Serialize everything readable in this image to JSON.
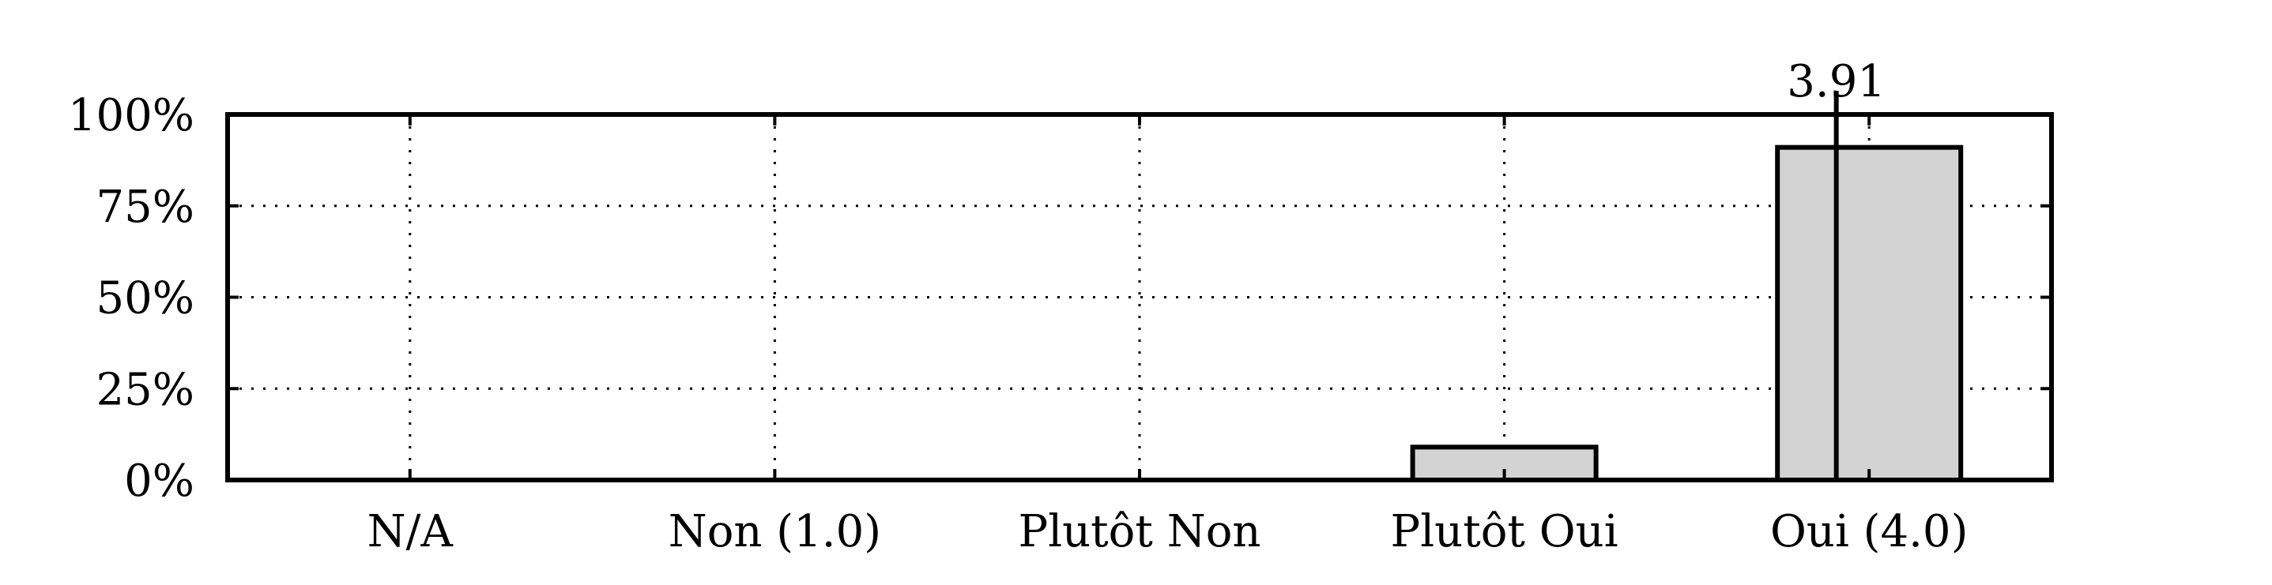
{
  "chart_data": {
    "type": "bar",
    "title": "",
    "xlabel": "",
    "ylabel": "",
    "categories": [
      "N/A",
      "Non (1.0)",
      "Plutôt Non",
      "Plutôt Oui",
      "Oui (4.0)"
    ],
    "values": [
      0,
      0,
      0,
      9,
      91
    ],
    "value_unit": "%",
    "ylim": [
      0,
      100
    ],
    "yticks": [
      0,
      25,
      50,
      75,
      100
    ],
    "ytick_labels": [
      "0%",
      "25%",
      "50%",
      "75%",
      "100%"
    ],
    "grid": true,
    "legend": "none",
    "bar_color": "#d3d3d3",
    "bar_edge_color": "#000000",
    "mean": {
      "label": "3.91",
      "value": 3.91,
      "scale_min": 1.0,
      "scale_max": 4.0,
      "scale_min_category": "Non (1.0)",
      "scale_max_category": "Oui (4.0)"
    }
  }
}
